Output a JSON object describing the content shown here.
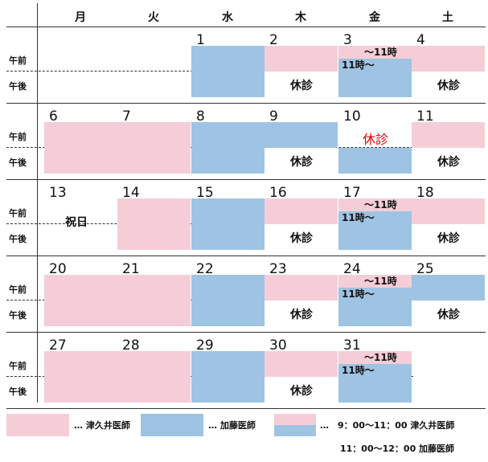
{
  "weekdays": [
    "月",
    "火",
    "水",
    "木",
    "金",
    "土"
  ],
  "am_label": "午前",
  "pm_label": "午後",
  "closed_label": "休診",
  "split_am_label": "～11時",
  "split_pm_label": "11時～",
  "holiday_label": "祝日",
  "colors": {
    "tsukui": "#f5cdd6",
    "kato": "#9fc3e2",
    "closed_red": "#e00000"
  },
  "weeks": [
    {
      "days": [
        {
          "col": 2,
          "num": "1",
          "type": "kato"
        },
        {
          "col": 3,
          "num": "2",
          "type": "thu"
        },
        {
          "col": 4,
          "num": "3",
          "type": "split"
        },
        {
          "col": 5,
          "num": "4",
          "type": "sat"
        }
      ]
    },
    {
      "days": [
        {
          "col": 0,
          "num": "6",
          "type": "tsukui"
        },
        {
          "col": 1,
          "num": "7",
          "type": "tsukui"
        },
        {
          "col": 2,
          "num": "8",
          "type": "kato"
        },
        {
          "col": 3,
          "num": "9",
          "type": "thu_kato"
        },
        {
          "col": 4,
          "num": "10",
          "type": "fri_closed_am"
        },
        {
          "col": 5,
          "num": "11",
          "type": "sat"
        }
      ]
    },
    {
      "days": [
        {
          "col": 0,
          "num": "13",
          "type": "holiday"
        },
        {
          "col": 1,
          "num": "14",
          "type": "tsukui"
        },
        {
          "col": 2,
          "num": "15",
          "type": "kato"
        },
        {
          "col": 3,
          "num": "16",
          "type": "thu"
        },
        {
          "col": 4,
          "num": "17",
          "type": "split"
        },
        {
          "col": 5,
          "num": "18",
          "type": "sat"
        }
      ]
    },
    {
      "days": [
        {
          "col": 0,
          "num": "20",
          "type": "tsukui"
        },
        {
          "col": 1,
          "num": "21",
          "type": "tsukui"
        },
        {
          "col": 2,
          "num": "22",
          "type": "kato"
        },
        {
          "col": 3,
          "num": "23",
          "type": "thu"
        },
        {
          "col": 4,
          "num": "24",
          "type": "split"
        },
        {
          "col": 5,
          "num": "25",
          "type": "sat_kato"
        }
      ]
    },
    {
      "days": [
        {
          "col": 0,
          "num": "27",
          "type": "tsukui"
        },
        {
          "col": 1,
          "num": "28",
          "type": "tsukui"
        },
        {
          "col": 2,
          "num": "29",
          "type": "kato"
        },
        {
          "col": 3,
          "num": "30",
          "type": "thu"
        },
        {
          "col": 4,
          "num": "31",
          "type": "split"
        }
      ]
    }
  ],
  "legend": {
    "tsukui": "… 津久井医師",
    "kato": "… 加藤医師",
    "split_line1": "…　9：00～11：00 津久井医師",
    "split_line2": "11：00～12：00 加藤医師"
  }
}
